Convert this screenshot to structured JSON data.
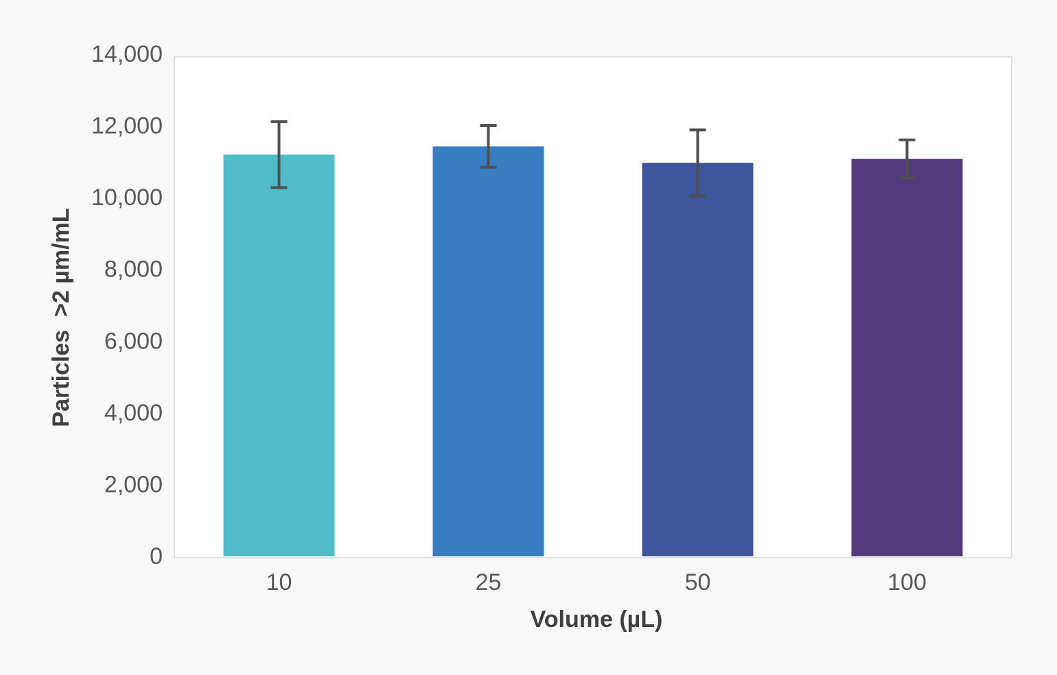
{
  "chart_data": {
    "type": "bar",
    "title": "",
    "xlabel": "Volume (µL)",
    "ylabel": "Particles  >2 µm/mL",
    "categories": [
      "10",
      "25",
      "50",
      "100"
    ],
    "values": [
      11200,
      11430,
      10970,
      11080
    ],
    "error": [
      920,
      580,
      920,
      530
    ],
    "colors": [
      "#4fbcc8",
      "#387cc1",
      "#3e569b",
      "#513b7c"
    ],
    "ylim": [
      0,
      14000
    ],
    "yticks": [
      0,
      2000,
      4000,
      6000,
      8000,
      10000,
      12000,
      14000
    ],
    "ytick_labels": [
      "0",
      "2,000",
      "4,000",
      "6,000",
      "8,000",
      "10,000",
      "12,000",
      "14,000"
    ],
    "grid": false,
    "legend": "none"
  }
}
